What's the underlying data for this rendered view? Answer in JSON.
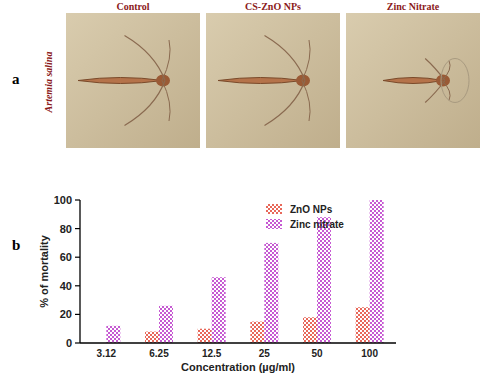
{
  "panels": {
    "a": {
      "label": "a",
      "species": "Artemia salina",
      "images": [
        "Control",
        "CS-ZnO NPs",
        "Zinc Nitrate"
      ]
    },
    "b": {
      "label": "b"
    }
  },
  "chart_data": {
    "type": "bar",
    "x_label": "Concentration (µg/ml)",
    "y_label": "% of mortality",
    "categories": [
      "3.12",
      "6.25",
      "12.5",
      "25",
      "50",
      "100"
    ],
    "series": [
      {
        "name": "ZnO NPs",
        "color": "#e8685a",
        "values": [
          0,
          8,
          10,
          15,
          18,
          25
        ]
      },
      {
        "name": "Zinc nitrate",
        "color": "#c65ad2",
        "values": [
          12,
          26,
          46,
          70,
          88,
          100
        ]
      }
    ],
    "ylim": [
      0,
      100
    ],
    "yticks": [
      0,
      20,
      40,
      60,
      80,
      100
    ],
    "grid": false,
    "legend": "upper right"
  }
}
